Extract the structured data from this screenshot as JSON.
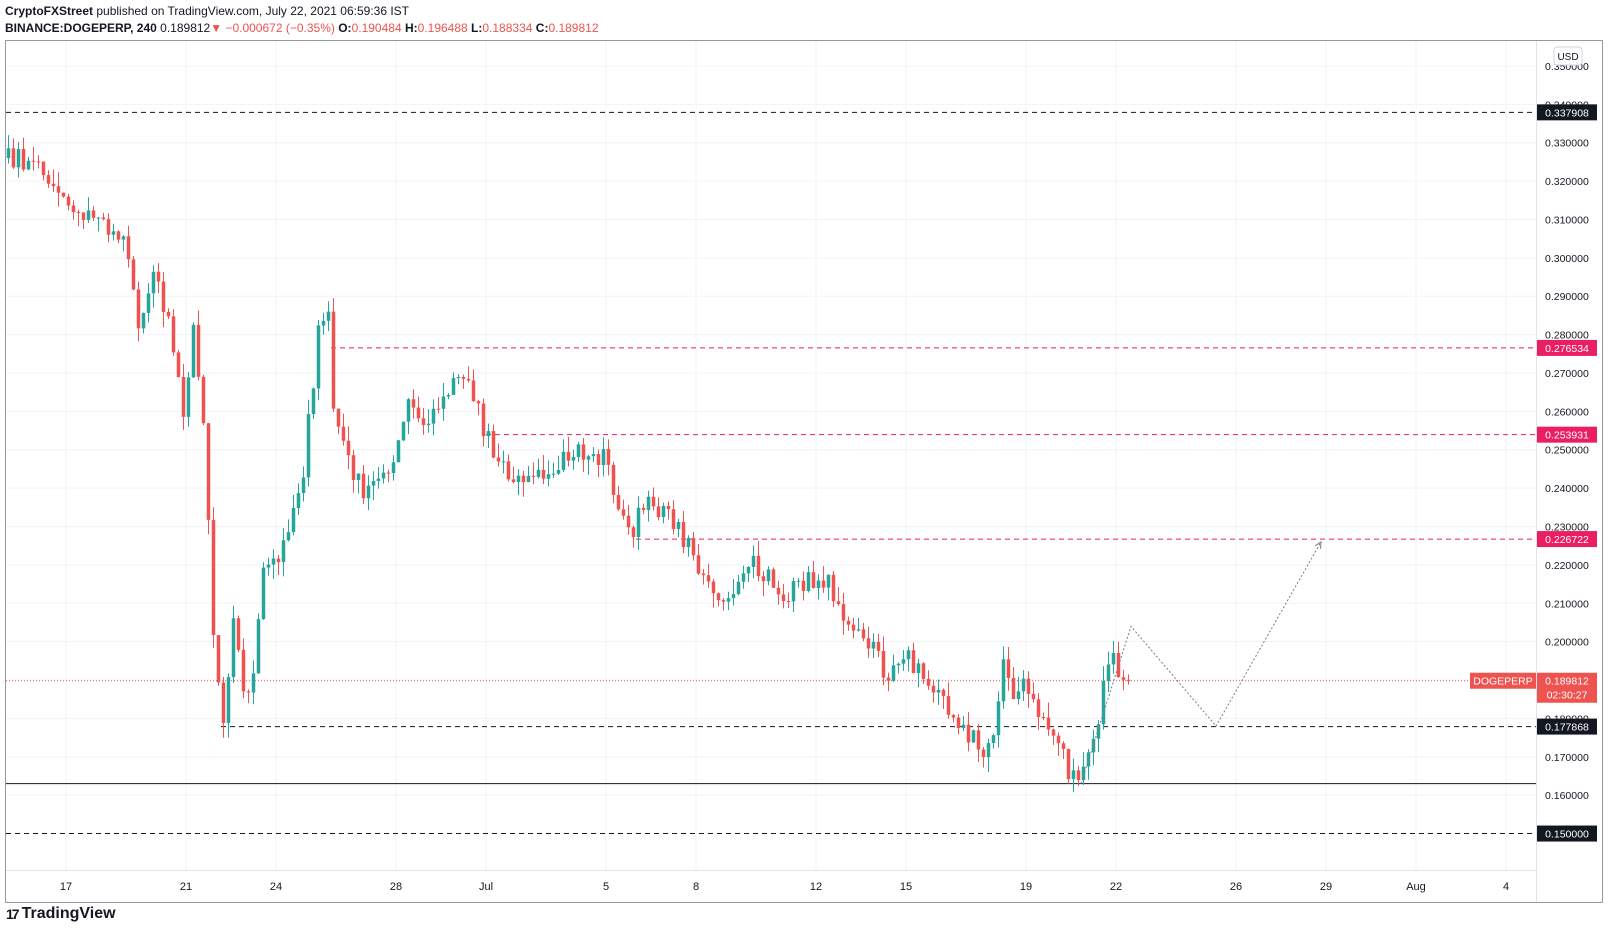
{
  "header": {
    "publisher": "CryptoFXStreet",
    "published_text": "published on TradingView.com, July 22, 2021 06:59:36 IST",
    "symbol": "BINANCE:DOGEPERP, 240",
    "last": "0.189812",
    "change": "▼ −0.000672 (−0.35%)",
    "o_label": "O:",
    "o_value": "0.190484",
    "h_label": "H:",
    "h_value": "0.196488",
    "l_label": "L:",
    "l_value": "0.188334",
    "c_label": "C:",
    "c_value": "0.189812"
  },
  "footer": {
    "logo_text": "TradingView",
    "logo_mark": "17"
  },
  "colors": {
    "up": "#26a69a",
    "down": "#ef5350",
    "pink": "#e91e63",
    "dark": "#131722",
    "grid": "#f0f3fa"
  },
  "chart_data": {
    "type": "candlestick",
    "symbol": "DOGEPERP",
    "currency": "USD",
    "y_range": [
      0.1405,
      0.3565
    ],
    "y_ticks": [
      0.16,
      0.17,
      0.18,
      0.19,
      0.2,
      0.21,
      0.22,
      0.23,
      0.24,
      0.25,
      0.26,
      0.27,
      0.28,
      0.29,
      0.3,
      0.31,
      0.32,
      0.33,
      0.34,
      0.35
    ],
    "y_tick_labels": [
      "0.160000",
      "0.170000",
      "0.180000",
      "0.190000",
      "0.200000",
      "0.210000",
      "0.220000",
      "0.230000",
      "0.240000",
      "0.250000",
      "0.260000",
      "0.270000",
      "0.280000",
      "0.290000",
      "0.300000",
      "0.310000",
      "0.320000",
      "0.330000",
      "0.340000",
      "0.350000"
    ],
    "x_range": [
      "2021-06-15",
      "2021-08-05"
    ],
    "x_ticks": [
      {
        "date": "2021-06-17",
        "label": "17"
      },
      {
        "date": "2021-06-21",
        "label": "21"
      },
      {
        "date": "2021-06-24",
        "label": "24"
      },
      {
        "date": "2021-06-28",
        "label": "28"
      },
      {
        "date": "2021-07-01",
        "label": "Jul"
      },
      {
        "date": "2021-07-05",
        "label": "5"
      },
      {
        "date": "2021-07-08",
        "label": "8"
      },
      {
        "date": "2021-07-12",
        "label": "12"
      },
      {
        "date": "2021-07-15",
        "label": "15"
      },
      {
        "date": "2021-07-19",
        "label": "19"
      },
      {
        "date": "2021-07-22",
        "label": "22"
      },
      {
        "date": "2021-07-26",
        "label": "26"
      },
      {
        "date": "2021-07-29",
        "label": "29"
      },
      {
        "date": "2021-08-01",
        "label": "Aug"
      },
      {
        "date": "2021-08-04",
        "label": "4"
      }
    ],
    "anchors": [
      {
        "date": "2021-06-15",
        "price": 0.326
      },
      {
        "date": "2021-06-16",
        "price": 0.325
      },
      {
        "date": "2021-06-16 12:00",
        "price": 0.318
      },
      {
        "date": "2021-06-17",
        "price": 0.315
      },
      {
        "date": "2021-06-18",
        "price": 0.31
      },
      {
        "date": "2021-06-19",
        "price": 0.306
      },
      {
        "date": "2021-06-19 12:00",
        "price": 0.284
      },
      {
        "date": "2021-06-20",
        "price": 0.295
      },
      {
        "date": "2021-06-20 12:00",
        "price": 0.283
      },
      {
        "date": "2021-06-21",
        "price": 0.26
      },
      {
        "date": "2021-06-21 08:00",
        "price": 0.28
      },
      {
        "date": "2021-06-21 16:00",
        "price": 0.258
      },
      {
        "date": "2021-06-22",
        "price": 0.2
      },
      {
        "date": "2021-06-22 08:00",
        "price": 0.178
      },
      {
        "date": "2021-06-22 16:00",
        "price": 0.208
      },
      {
        "date": "2021-06-23",
        "price": 0.188
      },
      {
        "date": "2021-06-23 08:00",
        "price": 0.19
      },
      {
        "date": "2021-06-23 16:00",
        "price": 0.218
      },
      {
        "date": "2021-06-24",
        "price": 0.22
      },
      {
        "date": "2021-06-24 12:00",
        "price": 0.23
      },
      {
        "date": "2021-06-25",
        "price": 0.245
      },
      {
        "date": "2021-06-25 12:00",
        "price": 0.28
      },
      {
        "date": "2021-06-25 20:00",
        "price": 0.288
      },
      {
        "date": "2021-06-26",
        "price": 0.262
      },
      {
        "date": "2021-06-26 08:00",
        "price": 0.25
      },
      {
        "date": "2021-06-27",
        "price": 0.24
      },
      {
        "date": "2021-06-28",
        "price": 0.247
      },
      {
        "date": "2021-06-28 12:00",
        "price": 0.264
      },
      {
        "date": "2021-06-29",
        "price": 0.258
      },
      {
        "date": "2021-06-30",
        "price": 0.268
      },
      {
        "date": "2021-06-30 16:00",
        "price": 0.265
      },
      {
        "date": "2021-07-01",
        "price": 0.255
      },
      {
        "date": "2021-07-02",
        "price": 0.24
      },
      {
        "date": "2021-07-03",
        "price": 0.243
      },
      {
        "date": "2021-07-04",
        "price": 0.249
      },
      {
        "date": "2021-07-05",
        "price": 0.248
      },
      {
        "date": "2021-07-05 16:00",
        "price": 0.232
      },
      {
        "date": "2021-07-06",
        "price": 0.23
      },
      {
        "date": "2021-07-06 12:00",
        "price": 0.238
      },
      {
        "date": "2021-07-07",
        "price": 0.234
      },
      {
        "date": "2021-07-08",
        "price": 0.223
      },
      {
        "date": "2021-07-08 16:00",
        "price": 0.212
      },
      {
        "date": "2021-07-09",
        "price": 0.208
      },
      {
        "date": "2021-07-09 12:00",
        "price": 0.215
      },
      {
        "date": "2021-07-10",
        "price": 0.22
      },
      {
        "date": "2021-07-11",
        "price": 0.212
      },
      {
        "date": "2021-07-12",
        "price": 0.216
      },
      {
        "date": "2021-07-12 12:00",
        "price": 0.217
      },
      {
        "date": "2021-07-13",
        "price": 0.205
      },
      {
        "date": "2021-07-14",
        "price": 0.197
      },
      {
        "date": "2021-07-14 12:00",
        "price": 0.19
      },
      {
        "date": "2021-07-15",
        "price": 0.198
      },
      {
        "date": "2021-07-16",
        "price": 0.188
      },
      {
        "date": "2021-07-17",
        "price": 0.177
      },
      {
        "date": "2021-07-17 16:00",
        "price": 0.172
      },
      {
        "date": "2021-07-18",
        "price": 0.175
      },
      {
        "date": "2021-07-18 08:00",
        "price": 0.197
      },
      {
        "date": "2021-07-18 16:00",
        "price": 0.188
      },
      {
        "date": "2021-07-19",
        "price": 0.19
      },
      {
        "date": "2021-07-19 12:00",
        "price": 0.18
      },
      {
        "date": "2021-07-20",
        "price": 0.175
      },
      {
        "date": "2021-07-20 16:00",
        "price": 0.164
      },
      {
        "date": "2021-07-21",
        "price": 0.167
      },
      {
        "date": "2021-07-21 08:00",
        "price": 0.172
      },
      {
        "date": "2021-07-21 16:00",
        "price": 0.19
      },
      {
        "date": "2021-07-22",
        "price": 0.2
      },
      {
        "date": "2021-07-22 04:00",
        "price": 0.19
      },
      {
        "date": "2021-07-22 08:00",
        "price": 0.19
      }
    ],
    "horizontal_levels": [
      {
        "price": 0.337908,
        "label": "0.337908",
        "style": "dashed",
        "color": "#131722",
        "from": "2021-06-15"
      },
      {
        "price": 0.276534,
        "label": "0.276534",
        "style": "dashed",
        "color": "#e91e63",
        "from": "2021-06-25 20:00"
      },
      {
        "price": 0.253931,
        "label": "0.253931",
        "style": "dashed",
        "color": "#e91e63",
        "from": "2021-07-01"
      },
      {
        "price": 0.226722,
        "label": "0.226722",
        "style": "dashed",
        "color": "#e91e63",
        "from": "2021-07-06"
      },
      {
        "price": 0.177868,
        "label": "0.177868",
        "style": "dashed",
        "color": "#131722",
        "from": "2021-06-22 04:00"
      },
      {
        "price": 0.163,
        "label": "",
        "style": "solid",
        "color": "#131722",
        "from": "2021-06-15"
      },
      {
        "price": 0.15,
        "label": "0.150000",
        "style": "dashed",
        "color": "#131722",
        "from": "2021-06-15"
      }
    ],
    "current_price": {
      "price": 0.189812,
      "symbol_label": "DOGEPERP",
      "value_label": "0.189812",
      "countdown": "02:30:27"
    },
    "projection_path": [
      {
        "date": "2021-07-20 20:00",
        "price": 0.163
      },
      {
        "date": "2021-07-22 12:00",
        "price": 0.204
      },
      {
        "date": "2021-07-25 08:00",
        "price": 0.178
      },
      {
        "date": "2021-07-28 20:00",
        "price": 0.226
      }
    ]
  }
}
